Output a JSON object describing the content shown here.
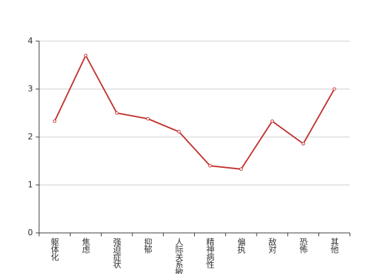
{
  "chart_data": {
    "type": "line",
    "categories": [
      "躯体化",
      "焦虑",
      "强迫症状",
      "抑郁",
      "人际关系敏感",
      "精神病性",
      "偏执",
      "敌对",
      "恐怖",
      "其他"
    ],
    "series": [
      {
        "color": "#c23531",
        "values": [
          2.33,
          3.7,
          2.5,
          2.38,
          2.11,
          1.4,
          1.33,
          2.33,
          1.86,
          3.0
        ]
      }
    ],
    "ylim": [
      0,
      4
    ],
    "yticks": [
      0,
      1,
      2,
      3,
      4
    ],
    "grid": true
  }
}
